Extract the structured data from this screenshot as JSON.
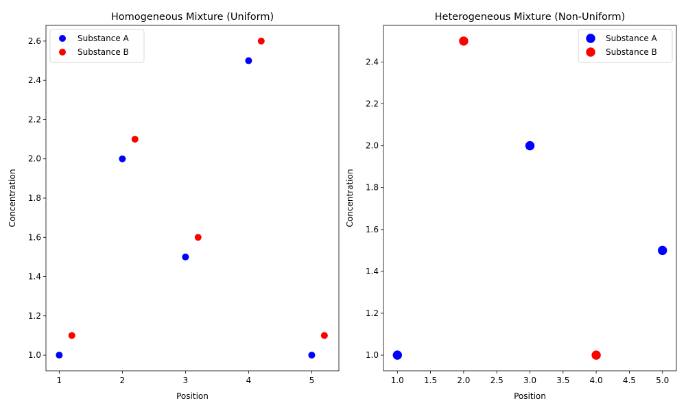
{
  "chart_data": [
    {
      "type": "scatter",
      "title": "Homogeneous Mixture (Uniform)",
      "xlabel": "Position",
      "ylabel": "Concentration",
      "xlim": [
        0.79,
        5.43
      ],
      "ylim": [
        0.92,
        2.68
      ],
      "xticks": [
        1,
        2,
        3,
        4,
        5
      ],
      "yticks": [
        1.0,
        1.2,
        1.4,
        1.6,
        1.8,
        2.0,
        2.2,
        2.4,
        2.6
      ],
      "tick_decimals": {
        "x": 0,
        "y": 1
      },
      "marker_size": "small",
      "legend_position": "top-left",
      "grid": false,
      "series": [
        {
          "name": "Substance A",
          "color": "#0000ff",
          "x": [
            1,
            2,
            3,
            4,
            5
          ],
          "y": [
            1.0,
            2.0,
            1.5,
            2.5,
            1.0
          ]
        },
        {
          "name": "Substance B",
          "color": "#ff0000",
          "x": [
            1.2,
            2.2,
            3.2,
            4.2,
            5.2
          ],
          "y": [
            1.1,
            2.1,
            1.6,
            2.6,
            1.1
          ]
        }
      ]
    },
    {
      "type": "scatter",
      "title": "Heterogeneous Mixture (Non-Uniform)",
      "xlabel": "Position",
      "ylabel": "Concentration",
      "xlim": [
        0.79,
        5.21
      ],
      "ylim": [
        0.925,
        2.575
      ],
      "xticks": [
        1.0,
        1.5,
        2.0,
        2.5,
        3.0,
        3.5,
        4.0,
        4.5,
        5.0
      ],
      "yticks": [
        1.0,
        1.2,
        1.4,
        1.6,
        1.8,
        2.0,
        2.2,
        2.4
      ],
      "tick_decimals": {
        "x": 1,
        "y": 1
      },
      "marker_size": "large",
      "legend_position": "top-right",
      "grid": false,
      "series": [
        {
          "name": "Substance A",
          "color": "#0000ff",
          "x": [
            1,
            3,
            5
          ],
          "y": [
            1.0,
            2.0,
            1.5
          ]
        },
        {
          "name": "Substance B",
          "color": "#ff0000",
          "x": [
            2,
            4
          ],
          "y": [
            2.5,
            1.0
          ]
        }
      ]
    }
  ]
}
